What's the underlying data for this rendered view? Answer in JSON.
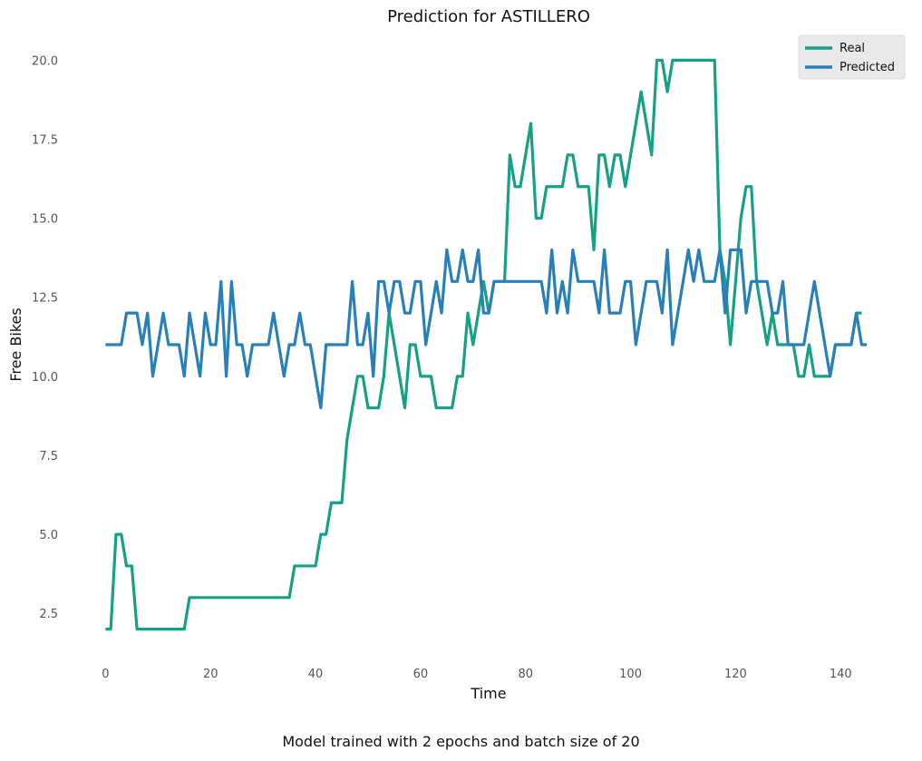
{
  "chart_data": {
    "type": "line",
    "title": "Prediction for ASTILLERO",
    "xlabel": "Time",
    "ylabel": "Free Bikes",
    "xlim": [
      -3,
      146
    ],
    "ylim": [
      1.1,
      20.9
    ],
    "xticks": [
      0,
      20,
      40,
      60,
      80,
      100,
      120,
      140
    ],
    "yticks": [
      2.5,
      5.0,
      7.5,
      10.0,
      12.5,
      15.0,
      17.5,
      20.0
    ],
    "ytick_labels": [
      "2.5",
      "5.0",
      "7.5",
      "10.0",
      "12.5",
      "15.0",
      "17.5",
      "20.0"
    ],
    "grid": false,
    "legend_position": "top-right",
    "series": [
      {
        "name": "Real",
        "color": "#16a085",
        "values": [
          2,
          2,
          5,
          5,
          4,
          4,
          2,
          2,
          2,
          2,
          2,
          2,
          2,
          2,
          2,
          2,
          3,
          3,
          3,
          3,
          3,
          3,
          3,
          3,
          3,
          3,
          3,
          3,
          3,
          3,
          3,
          3,
          3,
          3,
          3,
          3,
          4,
          4,
          4,
          4,
          4,
          5,
          5,
          6,
          6,
          6,
          8,
          9,
          10,
          10,
          9,
          9,
          9,
          10,
          12,
          11,
          10,
          9,
          11,
          11,
          10,
          10,
          10,
          9,
          9,
          9,
          9,
          10,
          10,
          12,
          11,
          12,
          13,
          12,
          13,
          13,
          13,
          17,
          16,
          16,
          17,
          18,
          15,
          15,
          16,
          16,
          16,
          16,
          17,
          17,
          16,
          16,
          16,
          14,
          17,
          17,
          16,
          17,
          17,
          16,
          17,
          18,
          19,
          18,
          17,
          20,
          20,
          19,
          20,
          20,
          20,
          20,
          20,
          20,
          20,
          20,
          20,
          14,
          13,
          11,
          13,
          15,
          16,
          16,
          13,
          12,
          11,
          12,
          11,
          11,
          11,
          11,
          10,
          10,
          11,
          10,
          10,
          10,
          10,
          11,
          11,
          11,
          11,
          12,
          12
        ]
      },
      {
        "name": "Predicted",
        "color": "#2980b9",
        "values": [
          11,
          11,
          11,
          11,
          12,
          12,
          12,
          11,
          12,
          10,
          11,
          12,
          11,
          11,
          11,
          10,
          12,
          11,
          10,
          12,
          11,
          11,
          13,
          10,
          13,
          11,
          11,
          10,
          11,
          11,
          11,
          11,
          12,
          11,
          10,
          11,
          11,
          12,
          11,
          11,
          10,
          9,
          11,
          11,
          11,
          11,
          11,
          13,
          11,
          11,
          12,
          10,
          13,
          13,
          12,
          13,
          13,
          12,
          12,
          13,
          13,
          11,
          12,
          13,
          12,
          14,
          13,
          13,
          14,
          13,
          13,
          14,
          12,
          12,
          13,
          13,
          13,
          13,
          13,
          13,
          13,
          13,
          13,
          13,
          12,
          14,
          12,
          13,
          12,
          14,
          13,
          13,
          13,
          13,
          12,
          14,
          12,
          12,
          12,
          13,
          13,
          11,
          12,
          13,
          13,
          13,
          12,
          14,
          11,
          12,
          13,
          14,
          13,
          14,
          13,
          13,
          13,
          14,
          12,
          14,
          14,
          14,
          12,
          13,
          13,
          13,
          13,
          12,
          12,
          13,
          11,
          11,
          11,
          11,
          12,
          13,
          12,
          11,
          10,
          11,
          11,
          11,
          11,
          12,
          11,
          11
        ]
      }
    ],
    "caption": "Model trained with 2 epochs and batch size of 20"
  }
}
